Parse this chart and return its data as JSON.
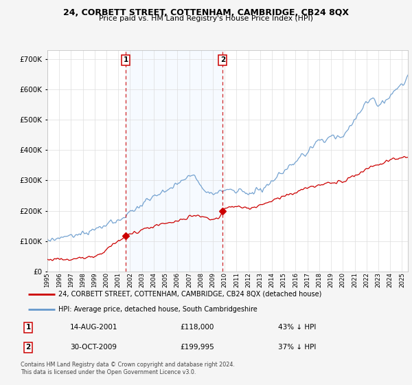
{
  "title": "24, CORBETT STREET, COTTENHAM, CAMBRIDGE, CB24 8QX",
  "subtitle": "Price paid vs. HM Land Registry's House Price Index (HPI)",
  "property_label": "24, CORBETT STREET, COTTENHAM, CAMBRIDGE, CB24 8QX (detached house)",
  "hpi_label": "HPI: Average price, detached house, South Cambridgeshire",
  "sale1_date": "14-AUG-2001",
  "sale1_price": "£118,000",
  "sale1_pct": "43% ↓ HPI",
  "sale2_date": "30-OCT-2009",
  "sale2_price": "£199,995",
  "sale2_pct": "37% ↓ HPI",
  "footer": "Contains HM Land Registry data © Crown copyright and database right 2024.\nThis data is licensed under the Open Government Licence v3.0.",
  "property_color": "#cc0000",
  "hpi_color": "#6699cc",
  "shade_color": "#ddeeff",
  "vline_color": "#cc0000",
  "marker_color": "#cc0000",
  "sale1_x": 2001.62,
  "sale2_x": 2009.83,
  "sale1_y": 118000,
  "sale2_y": 199995,
  "ylim": [
    0,
    730000
  ],
  "xlim_start": 1995.0,
  "xlim_end": 2025.5,
  "background_color": "#f5f5f5",
  "plot_bg_color": "#ffffff",
  "grid_color": "#dddddd"
}
